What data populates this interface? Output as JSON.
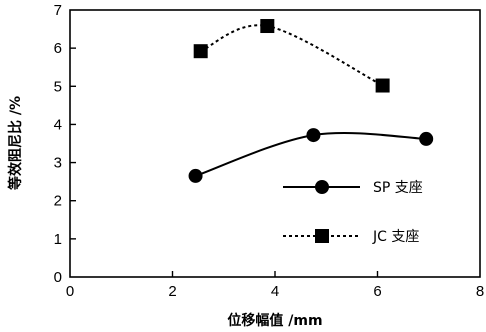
{
  "chart_data": {
    "type": "line",
    "xlabel": "位移幅值 /mm",
    "ylabel": "等效阻尼比 /%",
    "xlim": [
      0,
      8
    ],
    "ylim": [
      0,
      7
    ],
    "xticks": [
      "0",
      "2",
      "4",
      "6",
      "8"
    ],
    "yticks": [
      "0",
      "1",
      "2",
      "3",
      "4",
      "5",
      "6",
      "7"
    ],
    "grid": false,
    "legend_position": "lower-right",
    "series": [
      {
        "name": "SP 支座",
        "marker": "circle",
        "line": "solid",
        "smooth": true,
        "x": [
          2.45,
          4.75,
          6.95
        ],
        "y": [
          2.65,
          3.72,
          3.62
        ]
      },
      {
        "name": "JC 支座",
        "marker": "square",
        "line": "dotted",
        "smooth": true,
        "x": [
          2.55,
          3.85,
          6.1
        ],
        "y": [
          5.92,
          6.58,
          5.02
        ]
      }
    ]
  }
}
